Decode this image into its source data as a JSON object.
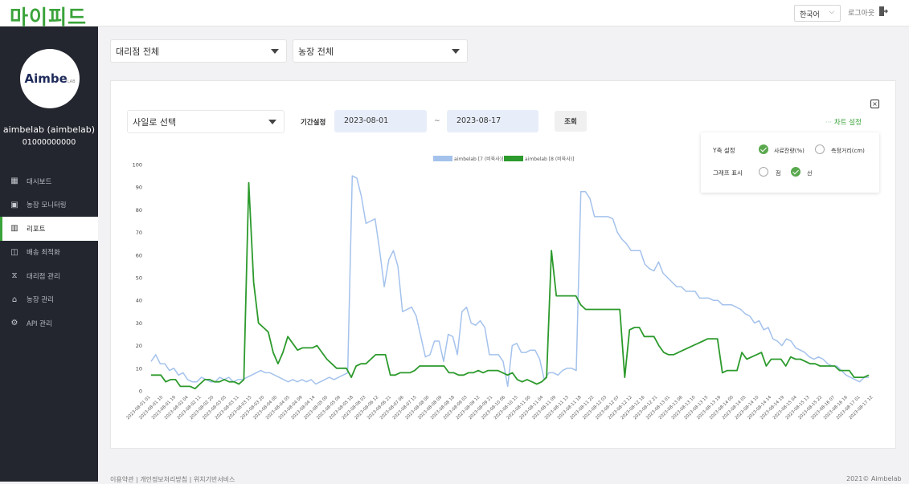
{
  "brand": {
    "logo": "마이피드",
    "accent": "#3aa33a"
  },
  "header": {
    "language": "한국어",
    "logout": "로그아웃"
  },
  "sidebar": {
    "avatar_text": "Aimbe",
    "avatar_sub": "LAB",
    "user_name": "aimbelab (aimbelab)",
    "user_phone": "01000000000",
    "items": [
      {
        "label": "대시보드",
        "icon": "dashboard-icon",
        "active": false
      },
      {
        "label": "농장 모니터링",
        "icon": "monitor-icon",
        "active": false
      },
      {
        "label": "리포트",
        "icon": "report-icon",
        "active": true
      },
      {
        "label": "배송 최적화",
        "icon": "delivery-icon",
        "active": false
      },
      {
        "label": "대리점 관리",
        "icon": "agency-icon",
        "active": false
      },
      {
        "label": "농장 관리",
        "icon": "home-icon",
        "active": false
      },
      {
        "label": "API 관리",
        "icon": "api-icon",
        "active": false
      }
    ]
  },
  "filters": {
    "agency": "대리점 전체",
    "farm": "농장 전체"
  },
  "controls": {
    "silo": "사일로 선택",
    "period_label": "기간설정",
    "date_from": "2023-08-01",
    "tilde": "~",
    "date_to": "2023-08-17",
    "search_button": "조회",
    "chart_setting": "차트 설정",
    "close": "×"
  },
  "chart_settings": {
    "y_axis_label": "Y축 설정",
    "y_options": [
      {
        "label": "사료잔량(%)",
        "selected": true
      },
      {
        "label": "측정거리(cm)",
        "selected": false
      }
    ],
    "graph_label": "그래프 표시",
    "graph_options": [
      {
        "label": "점",
        "selected": false
      },
      {
        "label": "선",
        "selected": true
      }
    ]
  },
  "chart_data": {
    "type": "line",
    "ylim": [
      0,
      100
    ],
    "y_ticks": [
      0,
      10,
      20,
      30,
      40,
      50,
      60,
      70,
      80,
      90,
      100
    ],
    "x_tick_labels": [
      "2023-08-01 01",
      "2023-08-01 10",
      "2023-08-01 19",
      "2023-08-02 04",
      "2023-08-02 11",
      "2023-08-02 20",
      "2023-08-03 05",
      "2023-08-03 11",
      "2023-08-03 15",
      "2023-08-03 20",
      "2023-08-04 00",
      "2023-08-04 05",
      "2023-08-04 09",
      "2023-08-04 14",
      "2023-08-05 00",
      "2023-08-05 09",
      "2023-08-05 18",
      "2023-08-06 03",
      "2023-08-06 12",
      "2023-08-06 21",
      "2023-08-07 06",
      "2023-08-07 15",
      "2023-08-08 00",
      "2023-08-08 09",
      "2023-08-08 18",
      "2023-08-09 03",
      "2023-08-09 12",
      "2023-08-09 21",
      "2023-08-10 06",
      "2023-08-10 15",
      "2023-08-11 00",
      "2023-08-11 04",
      "2023-08-11 09",
      "2023-08-11 13",
      "2023-08-11 18",
      "2023-08-11 22",
      "2023-08-12 03",
      "2023-08-12 07",
      "2023-08-12 12",
      "2023-08-12 16",
      "2023-08-12 21",
      "2023-08-13 01",
      "2023-08-13 06",
      "2023-08-13 10",
      "2023-08-13 15",
      "2023-08-13 19",
      "2023-08-14 00",
      "2023-08-14 05",
      "2023-08-14 10",
      "2023-08-14 14",
      "2023-08-14 19",
      "2023-08-15 04",
      "2023-08-15 13",
      "2023-08-15 22",
      "2023-08-16 07",
      "2023-08-16 16",
      "2023-08-17 01",
      "2023-08-17 12"
    ],
    "series": [
      {
        "name": "aimbelab [7 (비육사)]",
        "color": "#a4c2ec",
        "values": [
          13,
          16,
          12,
          12,
          9,
          10,
          7,
          8,
          5,
          4,
          4,
          6,
          5,
          4,
          4,
          6,
          5,
          6,
          4,
          5,
          5,
          6,
          7,
          8,
          9,
          8,
          8,
          7,
          6,
          5,
          4,
          5,
          4,
          5,
          4,
          5,
          3,
          4,
          5,
          6,
          5,
          6,
          7,
          8,
          95,
          94,
          86,
          74,
          75,
          76,
          62,
          46,
          58,
          62,
          55,
          35,
          36,
          37,
          33,
          24,
          15,
          16,
          22,
          22,
          13,
          25,
          24,
          16,
          35,
          37,
          30,
          29,
          31,
          28,
          16,
          16,
          16,
          13,
          2,
          20,
          21,
          17,
          17,
          18,
          18,
          14,
          5,
          8,
          8,
          7,
          9,
          10,
          10,
          9,
          88,
          88,
          85,
          77,
          77,
          77,
          77,
          76,
          70,
          67,
          65,
          62,
          62,
          62,
          56,
          54,
          53,
          57,
          52,
          50,
          48,
          46,
          46,
          44,
          44,
          44,
          41,
          41,
          41,
          40,
          40,
          38,
          38,
          38,
          37,
          36,
          34,
          33,
          30,
          31,
          27,
          28,
          23,
          22,
          20,
          23,
          22,
          19,
          18,
          17,
          15,
          14,
          15,
          14,
          12,
          11,
          11,
          9,
          7,
          6,
          5,
          4,
          6,
          6
        ]
      },
      {
        "name": "aimbelab [8 (비육사)]",
        "color": "#2c9a2c",
        "values": [
          7,
          7,
          7,
          4,
          5,
          5,
          2,
          2,
          2,
          1,
          3,
          5,
          5,
          4,
          4,
          5,
          4,
          4,
          3,
          5,
          92,
          48,
          30,
          28,
          26,
          17,
          12,
          17,
          24,
          21,
          18,
          19,
          19,
          19,
          20,
          17,
          14,
          12,
          10,
          10,
          10,
          6,
          11,
          12,
          12,
          14,
          16,
          16,
          16,
          7,
          7,
          8,
          8,
          8,
          9,
          11,
          11,
          11,
          11,
          11,
          11,
          8,
          8,
          7,
          7,
          8,
          8,
          9,
          8,
          9,
          9,
          9,
          8,
          7,
          8,
          5,
          4,
          5,
          4,
          3,
          4,
          6,
          62,
          42,
          42,
          42,
          42,
          42,
          38,
          36,
          36,
          36,
          36,
          36,
          36,
          36,
          36,
          6,
          27,
          28,
          28,
          24,
          24,
          24,
          20,
          17,
          16,
          16,
          17,
          18,
          19,
          20,
          21,
          22,
          23,
          23,
          23,
          8,
          9,
          9,
          9,
          17,
          14,
          15,
          16,
          17,
          11,
          14,
          14,
          14,
          11,
          15,
          14,
          14,
          13,
          12,
          12,
          11,
          11,
          11,
          11,
          9,
          9,
          9,
          6,
          6,
          6,
          7
        ]
      }
    ]
  },
  "footer": {
    "links": "이용약관 | 개인정보처리방침 | 위치기반서비스",
    "copyright": "2021© Aimbelab"
  }
}
